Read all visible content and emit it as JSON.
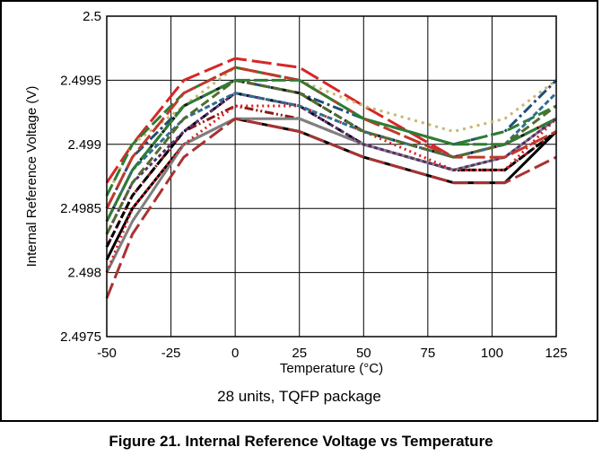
{
  "chart_data": {
    "type": "line",
    "title": "",
    "subtitle": "28 units, TQFP package",
    "caption": "Figure 21. Internal Reference Voltage vs Temperature",
    "xlabel": "Temperature (°C)",
    "ylabel": "Internal Reference Voltage (V)",
    "xlim": [
      -50,
      125
    ],
    "ylim": [
      2.4975,
      2.5
    ],
    "xticks": [
      "-50",
      "-25",
      "0",
      "25",
      "50",
      "75",
      "100",
      "125"
    ],
    "yticks": [
      "2.4975",
      "2.498",
      "2.4985",
      "2.499",
      "2.4995",
      "2.5"
    ],
    "grid": true,
    "legend": "none",
    "x": [
      -50,
      -40,
      -20,
      0,
      25,
      50,
      85,
      105,
      125
    ],
    "series": [
      {
        "color": "#d62728",
        "dash": "22,6",
        "values": [
          2.4987,
          2.499,
          2.4995,
          2.49967,
          2.4996,
          2.4993,
          2.4989,
          2.499,
          2.4992
        ]
      },
      {
        "color": "#1f4e79",
        "dash": "12,4,3,4",
        "values": [
          2.4985,
          2.4989,
          2.4993,
          2.4995,
          2.4994,
          2.4992,
          2.499,
          2.4991,
          2.4995
        ]
      },
      {
        "color": "#c8b86e",
        "dash": "3,5",
        "values": [
          2.4986,
          2.499,
          2.4993,
          2.4996,
          2.4995,
          2.4993,
          2.4991,
          2.4992,
          2.4995
        ]
      },
      {
        "color": "#2e7d32",
        "dash": "14,5",
        "values": [
          2.4986,
          2.499,
          2.4994,
          2.4996,
          2.4995,
          2.4992,
          2.499,
          2.4991,
          2.4993
        ]
      },
      {
        "color": "#1a1a1a",
        "dash": "9,4",
        "values": [
          2.4984,
          2.4988,
          2.4993,
          2.4995,
          2.4994,
          2.4991,
          2.4989,
          2.499,
          2.4992
        ]
      },
      {
        "color": "#8b1a1a",
        "dash": "10,3,2,3,2,3",
        "values": [
          2.4982,
          2.4986,
          2.4991,
          2.4993,
          2.4992,
          2.499,
          2.4988,
          2.4988,
          2.4991
        ]
      },
      {
        "color": "#000000",
        "dash": "",
        "values": [
          2.4981,
          2.4985,
          2.499,
          2.4992,
          2.4991,
          2.4989,
          2.4987,
          2.4987,
          2.4991
        ]
      },
      {
        "color": "#000000",
        "dash": "8,4",
        "values": [
          2.4982,
          2.4986,
          2.4991,
          2.4994,
          2.4993,
          2.499,
          2.4988,
          2.4988,
          2.4991
        ]
      },
      {
        "color": "#7f7f7f",
        "dash": "",
        "values": [
          2.498,
          2.4984,
          2.499,
          2.4992,
          2.4992,
          2.499,
          2.4988,
          2.4989,
          2.4992
        ]
      },
      {
        "color": "#e31a1c",
        "dash": "2,4",
        "values": [
          2.498,
          2.4985,
          2.499,
          2.4993,
          2.4993,
          2.4991,
          2.4988,
          2.4988,
          2.4992
        ]
      },
      {
        "color": "#5b2c6f",
        "dash": "4,3",
        "values": [
          2.4983,
          2.4987,
          2.4991,
          2.4994,
          2.4993,
          2.499,
          2.4988,
          2.4989,
          2.4992
        ]
      },
      {
        "color": "#a83232",
        "dash": "18,6",
        "values": [
          2.4978,
          2.4983,
          2.4989,
          2.4992,
          2.4991,
          2.4989,
          2.4987,
          2.4987,
          2.4989
        ]
      },
      {
        "color": "#2f6f8f",
        "dash": "6,3",
        "values": [
          2.4984,
          2.4988,
          2.4992,
          2.4994,
          2.4993,
          2.4991,
          2.4989,
          2.499,
          2.4994
        ]
      },
      {
        "color": "#c0392b",
        "dash": "20,5",
        "values": [
          2.4985,
          2.4989,
          2.4994,
          2.4996,
          2.4995,
          2.4992,
          2.4989,
          2.4989,
          2.4991
        ]
      },
      {
        "color": "#556b2f",
        "dash": "10,5",
        "values": [
          2.4983,
          2.4987,
          2.4992,
          2.4995,
          2.4994,
          2.4991,
          2.4989,
          2.499,
          2.4993
        ]
      },
      {
        "color": "#2e7d32",
        "dash": "16,4",
        "values": [
          2.4984,
          2.4988,
          2.4993,
          2.4995,
          2.4995,
          2.4992,
          2.499,
          2.499,
          2.4992
        ]
      }
    ]
  }
}
